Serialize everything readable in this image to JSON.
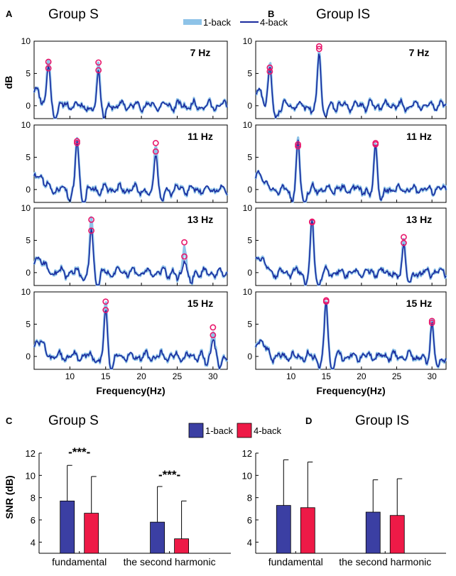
{
  "colors": {
    "light": "#8ec3e8",
    "dark": "#1a2b9e",
    "marker": "#e8176b",
    "bar_blue": "#3b3fa3",
    "bar_red": "#ee1a47",
    "axis": "#000000"
  },
  "panels": {
    "A": {
      "letter": "A",
      "title": "Group S"
    },
    "B": {
      "letter": "B",
      "title": "Group IS"
    },
    "C": {
      "letter": "C",
      "title": "Group S"
    },
    "D": {
      "letter": "D",
      "title": "Group IS"
    }
  },
  "legend_top": {
    "items": [
      "1-back",
      "4-back"
    ]
  },
  "legend_bottom": {
    "items": [
      "1-back",
      "4-back"
    ]
  },
  "chart_data": [
    {
      "type": "line",
      "panel": "A",
      "title": "Group S",
      "series": [
        {
          "name": "1-back"
        },
        {
          "name": "4-back"
        }
      ],
      "xlabel": "Frequency(Hz)",
      "ylabel": "dB",
      "xlim": [
        5,
        32
      ],
      "ylim": [
        -2,
        10
      ],
      "xticks": [
        "10",
        "15",
        "20",
        "25",
        "30"
      ],
      "yticks": [
        "0",
        "5",
        "10"
      ],
      "subplots": [
        {
          "label": "7 Hz",
          "peaks": [
            {
              "f": 7,
              "hi": 6.8,
              "lo": 5.8
            },
            {
              "f": 14,
              "hi": 6.7,
              "lo": 5.5
            }
          ]
        },
        {
          "label": "11 Hz",
          "peaks": [
            {
              "f": 11,
              "hi": 7.5,
              "lo": 7.2
            },
            {
              "f": 22,
              "hi": 7.2,
              "lo": 5.9
            }
          ]
        },
        {
          "label": "13 Hz",
          "peaks": [
            {
              "f": 13,
              "hi": 8.2,
              "lo": 6.5
            },
            {
              "f": 26,
              "hi": 4.7,
              "lo": 2.5
            }
          ]
        },
        {
          "label": "15 Hz",
          "peaks": [
            {
              "f": 15,
              "hi": 8.5,
              "lo": 7.2
            },
            {
              "f": 30,
              "hi": 4.5,
              "lo": 3.3
            }
          ]
        }
      ]
    },
    {
      "type": "line",
      "panel": "B",
      "title": "Group IS",
      "series": [
        {
          "name": "1-back"
        },
        {
          "name": "4-back"
        }
      ],
      "xlabel": "Frequency(Hz)",
      "ylabel": "",
      "xlim": [
        5,
        32
      ],
      "ylim": [
        -2,
        10
      ],
      "xticks": [
        "10",
        "15",
        "20",
        "25",
        "30"
      ],
      "yticks": [
        "0",
        "5",
        "10"
      ],
      "subplots": [
        {
          "label": "7 Hz",
          "peaks": [
            {
              "f": 7,
              "hi": 5.9,
              "lo": 5.3
            },
            {
              "f": 14,
              "hi": 9.2,
              "lo": 8.8
            }
          ]
        },
        {
          "label": "11 Hz",
          "peaks": [
            {
              "f": 11,
              "hi": 7.0,
              "lo": 6.7
            },
            {
              "f": 22,
              "hi": 7.2,
              "lo": 7.0
            }
          ]
        },
        {
          "label": "13 Hz",
          "peaks": [
            {
              "f": 13,
              "hi": 7.9,
              "lo": 7.8
            },
            {
              "f": 26,
              "hi": 5.5,
              "lo": 4.6
            }
          ]
        },
        {
          "label": "15 Hz",
          "peaks": [
            {
              "f": 15,
              "hi": 8.7,
              "lo": 8.5
            },
            {
              "f": 30,
              "hi": 5.5,
              "lo": 5.2
            }
          ]
        }
      ]
    },
    {
      "type": "bar",
      "panel": "C",
      "title": "Group S",
      "categories": [
        "fundamental",
        "the second harmonic"
      ],
      "series": [
        {
          "name": "1-back",
          "values": [
            7.7,
            5.8
          ],
          "err": [
            3.2,
            3.2
          ]
        },
        {
          "name": "4-back",
          "values": [
            6.6,
            4.3
          ],
          "err": [
            3.3,
            3.4
          ]
        }
      ],
      "annotations": [
        "-***-",
        "-***-"
      ],
      "ylabel": "SNR (dB)",
      "ylim": [
        3,
        12
      ],
      "yticks": [
        "4",
        "6",
        "8",
        "10",
        "12"
      ]
    },
    {
      "type": "bar",
      "panel": "D",
      "title": "Group IS",
      "categories": [
        "fundamental",
        "the second harmonic"
      ],
      "series": [
        {
          "name": "1-back",
          "values": [
            7.3,
            6.7
          ],
          "err": [
            4.1,
            2.9
          ]
        },
        {
          "name": "4-back",
          "values": [
            7.1,
            6.4
          ],
          "err": [
            4.1,
            3.3
          ]
        }
      ],
      "ylabel": "",
      "ylim": [
        3,
        12
      ],
      "yticks": [
        "4",
        "6",
        "8",
        "10",
        "12"
      ]
    }
  ]
}
